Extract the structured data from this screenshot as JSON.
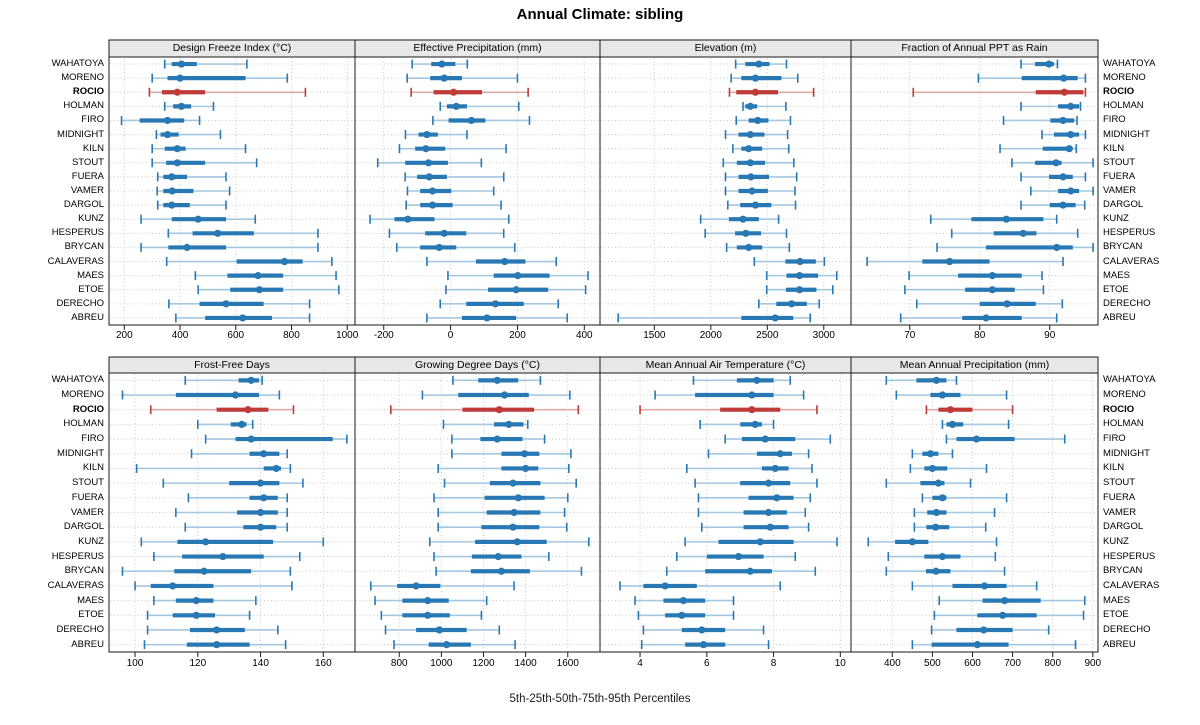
{
  "title": "Annual Climate: sibling",
  "caption": "5th-25th-50th-75th-95th Percentiles",
  "colors": {
    "blue": "#2878b4",
    "blue_light": "#a5c8e1",
    "red": "#c03a38",
    "red_light": "#ddaaa6",
    "strip_bg": "#e8e8e8",
    "panel_border": "#1a1a1a",
    "grid": "#c8c8c8"
  },
  "highlight_station": "ROCIO",
  "highlight_index": 2,
  "chart_data": {
    "type": "dotplot",
    "subtype": "percentile-interval-plot",
    "percentiles": [
      5,
      25,
      50,
      75,
      95
    ],
    "stations": [
      "WAHATOYA",
      "MORENO",
      "ROCIO",
      "HOLMAN",
      "FIRO",
      "MIDNIGHT",
      "KILN",
      "STOUT",
      "FUERA",
      "VAMER",
      "DARGOL",
      "KUNZ",
      "HESPERUS",
      "BRYCAN",
      "CALAVERAS",
      "MAES",
      "ETOE",
      "DERECHO",
      "ABREU"
    ],
    "panels": [
      {
        "title": "Design Freeze Index (°C)",
        "ticks": [
          200,
          400,
          600,
          800,
          1000
        ],
        "xlim": [
          145,
          1028
        ],
        "values": [
          [
            345,
            370,
            405,
            460,
            640
          ],
          [
            300,
            355,
            400,
            635,
            785
          ],
          [
            290,
            335,
            390,
            490,
            850
          ],
          [
            345,
            375,
            405,
            440,
            520
          ],
          [
            190,
            255,
            355,
            415,
            470
          ],
          [
            315,
            330,
            355,
            395,
            545
          ],
          [
            300,
            345,
            390,
            420,
            635
          ],
          [
            300,
            350,
            390,
            490,
            675
          ],
          [
            320,
            340,
            370,
            425,
            565
          ],
          [
            318,
            340,
            372,
            448,
            578
          ],
          [
            320,
            340,
            370,
            435,
            565
          ],
          [
            260,
            370,
            465,
            565,
            670
          ],
          [
            358,
            445,
            535,
            665,
            895
          ],
          [
            260,
            358,
            425,
            565,
            895
          ],
          [
            352,
            603,
            775,
            840,
            945
          ],
          [
            455,
            570,
            680,
            770,
            960
          ],
          [
            465,
            580,
            685,
            770,
            970
          ],
          [
            360,
            470,
            565,
            700,
            865
          ],
          [
            385,
            490,
            625,
            730,
            865
          ]
        ]
      },
      {
        "title": "Effective Precipitation (mm)",
        "ticks": [
          -200,
          0,
          200,
          400
        ],
        "xlim": [
          -286,
          447
        ],
        "values": [
          [
            -115,
            -58,
            -26,
            14,
            50
          ],
          [
            -130,
            -61,
            -19,
            34,
            200
          ],
          [
            -118,
            -51,
            9,
            94,
            232
          ],
          [
            -31,
            -11,
            17,
            49,
            204
          ],
          [
            -53,
            -6,
            62,
            104,
            236
          ],
          [
            -135,
            -96,
            -71,
            -38,
            49
          ],
          [
            -153,
            -106,
            -74,
            -16,
            166
          ],
          [
            -218,
            -136,
            -66,
            -8,
            92
          ],
          [
            -136,
            -100,
            -64,
            -11,
            159
          ],
          [
            -129,
            -91,
            -54,
            2,
            129
          ],
          [
            -133,
            -91,
            -54,
            6,
            151
          ],
          [
            -241,
            -168,
            -128,
            -48,
            174
          ],
          [
            -183,
            -76,
            -19,
            47,
            159
          ],
          [
            -161,
            -91,
            -34,
            17,
            192
          ],
          [
            -71,
            76,
            162,
            224,
            316
          ],
          [
            -8,
            129,
            201,
            296,
            411
          ],
          [
            -14,
            112,
            196,
            292,
            404
          ],
          [
            -31,
            47,
            134,
            219,
            322
          ],
          [
            -71,
            34,
            109,
            196,
            349
          ]
        ]
      },
      {
        "title": "Elevation (m)",
        "ticks": [
          1500,
          2000,
          2500,
          3000
        ],
        "xlim": [
          1019,
          3241
        ],
        "values": [
          [
            2220,
            2305,
            2425,
            2520,
            2670
          ],
          [
            2180,
            2270,
            2395,
            2625,
            2770
          ],
          [
            2165,
            2225,
            2395,
            2595,
            2910
          ],
          [
            2285,
            2305,
            2350,
            2410,
            2665
          ],
          [
            2225,
            2335,
            2415,
            2510,
            2705
          ],
          [
            2130,
            2245,
            2350,
            2475,
            2680
          ],
          [
            2195,
            2270,
            2335,
            2455,
            2690
          ],
          [
            2110,
            2230,
            2350,
            2480,
            2735
          ],
          [
            2130,
            2245,
            2355,
            2515,
            2760
          ],
          [
            2130,
            2245,
            2365,
            2505,
            2745
          ],
          [
            2150,
            2260,
            2395,
            2535,
            2750
          ],
          [
            1910,
            2160,
            2285,
            2425,
            2600
          ],
          [
            1950,
            2215,
            2310,
            2445,
            2670
          ],
          [
            2140,
            2230,
            2335,
            2455,
            2695
          ],
          [
            2385,
            2660,
            2790,
            2930,
            3005
          ],
          [
            2495,
            2670,
            2785,
            2950,
            3115
          ],
          [
            2495,
            2665,
            2785,
            2935,
            3080
          ],
          [
            2425,
            2580,
            2715,
            2850,
            2960
          ],
          [
            1180,
            2270,
            2570,
            2730,
            2880
          ]
        ]
      },
      {
        "title": "Fraction of Annual PPT as Rain",
        "ticks": [
          70,
          80,
          90
        ],
        "xlim": [
          61.6,
          96.9
        ],
        "values": [
          [
            85.9,
            87.9,
            89.9,
            90.6,
            91.1
          ],
          [
            79.8,
            86.0,
            92.0,
            94.0,
            95.1
          ],
          [
            70.5,
            88.0,
            92.1,
            94.8,
            95.1
          ],
          [
            85.9,
            91.2,
            93.0,
            94.2,
            94.4
          ],
          [
            83.4,
            90.1,
            91.9,
            93.5,
            93.9
          ],
          [
            88.9,
            90.6,
            93.0,
            94.2,
            95.1
          ],
          [
            82.9,
            89.0,
            92.8,
            93.2,
            93.8
          ],
          [
            84.6,
            87.9,
            90.9,
            91.7,
            96.2
          ],
          [
            85.9,
            89.9,
            91.9,
            93.3,
            95.1
          ],
          [
            87.3,
            91.2,
            93.0,
            94.2,
            96.2
          ],
          [
            85.9,
            90.0,
            91.9,
            93.7,
            95.0
          ],
          [
            73.0,
            78.8,
            83.8,
            89.1,
            91.0
          ],
          [
            76.0,
            82.0,
            86.2,
            88.1,
            94.0
          ],
          [
            73.9,
            80.9,
            91.0,
            93.3,
            96.2
          ],
          [
            63.9,
            71.8,
            75.7,
            81.4,
            91.9
          ],
          [
            69.9,
            76.9,
            81.8,
            86.0,
            88.9
          ],
          [
            69.3,
            77.9,
            81.8,
            85.0,
            89.1
          ],
          [
            71.0,
            80.0,
            83.9,
            88.0,
            91.8
          ],
          [
            68.7,
            77.5,
            80.9,
            86.0,
            91.0
          ]
        ]
      },
      {
        "title": "Frost-Free Days",
        "ticks": [
          100,
          120,
          140,
          160
        ],
        "xlim": [
          91.7,
          170.1
        ],
        "values": [
          [
            116,
            133,
            137,
            139.5,
            140.5
          ],
          [
            96,
            113,
            132,
            139.5,
            146
          ],
          [
            105,
            126,
            136,
            142.5,
            150.5
          ],
          [
            120,
            130.5,
            134,
            135.5,
            137.5
          ],
          [
            122.5,
            132,
            137,
            163,
            167.5
          ],
          [
            118,
            136.5,
            141,
            146,
            148.5
          ],
          [
            100.5,
            141,
            145,
            146.5,
            149.5
          ],
          [
            109,
            130,
            140,
            146,
            153.5
          ],
          [
            117,
            136.5,
            141,
            145.5,
            148.5
          ],
          [
            113,
            132.5,
            140,
            145.5,
            148.5
          ],
          [
            116,
            134.5,
            140,
            145,
            148.5
          ],
          [
            102,
            113.5,
            122.5,
            144,
            160
          ],
          [
            106,
            115,
            128,
            141,
            152.5
          ],
          [
            96,
            112.5,
            122,
            137,
            149.5
          ],
          [
            100,
            105,
            112,
            125,
            150
          ],
          [
            106,
            113,
            119.5,
            125,
            138.5
          ],
          [
            104,
            112,
            119.5,
            125.5,
            136.5
          ],
          [
            104,
            117.5,
            126,
            135,
            145.5
          ],
          [
            103,
            116.5,
            126,
            136.5,
            148
          ]
        ]
      },
      {
        "title": "Growing Degree Days (°C)",
        "ticks": [
          800,
          1000,
          1200,
          1400,
          1600
        ],
        "xlim": [
          590,
          1753
        ],
        "values": [
          [
            1055,
            1175,
            1265,
            1365,
            1470
          ],
          [
            910,
            1080,
            1300,
            1415,
            1610
          ],
          [
            760,
            1100,
            1275,
            1440,
            1650
          ],
          [
            1010,
            1250,
            1320,
            1390,
            1410
          ],
          [
            1050,
            1185,
            1265,
            1385,
            1490
          ],
          [
            1050,
            1285,
            1395,
            1465,
            1615
          ],
          [
            985,
            1285,
            1400,
            1460,
            1605
          ],
          [
            1015,
            1230,
            1340,
            1470,
            1640
          ],
          [
            965,
            1205,
            1365,
            1490,
            1600
          ],
          [
            985,
            1215,
            1345,
            1470,
            1585
          ],
          [
            985,
            1190,
            1340,
            1465,
            1595
          ],
          [
            945,
            1160,
            1360,
            1500,
            1700
          ],
          [
            965,
            1145,
            1270,
            1380,
            1510
          ],
          [
            975,
            1140,
            1285,
            1420,
            1665
          ],
          [
            665,
            790,
            880,
            995,
            1345
          ],
          [
            685,
            815,
            935,
            1035,
            1215
          ],
          [
            715,
            815,
            935,
            1040,
            1190
          ],
          [
            735,
            880,
            990,
            1120,
            1275
          ],
          [
            775,
            940,
            1025,
            1140,
            1350
          ]
        ]
      },
      {
        "title": "Mean Annual Air Temperature (°C)",
        "ticks": [
          4,
          6,
          8,
          10
        ],
        "xlim": [
          2.8,
          10.32
        ],
        "values": [
          [
            5.6,
            6.9,
            7.5,
            8.0,
            8.5
          ],
          [
            4.45,
            5.65,
            7.35,
            8.0,
            8.9
          ],
          [
            4.0,
            6.4,
            7.35,
            8.2,
            9.3
          ],
          [
            5.8,
            7.0,
            7.45,
            7.65,
            8.0
          ],
          [
            6.55,
            7.05,
            7.75,
            8.65,
            9.7
          ],
          [
            6.05,
            7.5,
            8.2,
            8.55,
            9.05
          ],
          [
            5.4,
            7.65,
            8.05,
            8.45,
            9.15
          ],
          [
            5.65,
            7.0,
            7.85,
            8.5,
            9.3
          ],
          [
            5.75,
            7.25,
            8.1,
            8.6,
            9.1
          ],
          [
            5.75,
            7.1,
            7.85,
            8.4,
            8.95
          ],
          [
            5.85,
            7.1,
            7.9,
            8.45,
            9.05
          ],
          [
            5.35,
            6.35,
            7.6,
            8.6,
            9.9
          ],
          [
            5.1,
            6.0,
            6.95,
            7.7,
            8.65
          ],
          [
            4.8,
            5.95,
            7.3,
            7.95,
            9.25
          ],
          [
            3.4,
            4.1,
            4.75,
            5.7,
            8.2
          ],
          [
            3.85,
            4.7,
            5.3,
            5.95,
            6.8
          ],
          [
            3.95,
            4.75,
            5.25,
            5.95,
            6.8
          ],
          [
            4.1,
            5.25,
            5.85,
            6.55,
            7.7
          ],
          [
            4.05,
            5.35,
            5.9,
            6.55,
            7.85
          ]
        ]
      },
      {
        "title": "Mean Annual Precipitation (mm)",
        "ticks": [
          400,
          500,
          600,
          700,
          800,
          900
        ],
        "xlim": [
          297,
          913
        ],
        "values": [
          [
            385,
            460,
            510,
            535,
            560
          ],
          [
            410,
            495,
            525,
            570,
            685
          ],
          [
            485,
            515,
            545,
            600,
            700
          ],
          [
            525,
            535,
            550,
            577,
            690
          ],
          [
            535,
            560,
            610,
            705,
            830
          ],
          [
            450,
            475,
            495,
            515,
            550
          ],
          [
            445,
            480,
            500,
            537,
            635
          ],
          [
            385,
            470,
            515,
            530,
            595
          ],
          [
            475,
            500,
            525,
            535,
            685
          ],
          [
            455,
            487,
            510,
            535,
            655
          ],
          [
            455,
            485,
            508,
            542,
            633
          ],
          [
            340,
            407,
            450,
            490,
            660
          ],
          [
            390,
            480,
            525,
            570,
            657
          ],
          [
            385,
            484,
            509,
            545,
            680
          ],
          [
            450,
            550,
            630,
            685,
            760
          ],
          [
            517,
            625,
            680,
            770,
            880
          ],
          [
            505,
            612,
            675,
            760,
            877
          ],
          [
            498,
            560,
            628,
            700,
            790
          ],
          [
            450,
            498,
            612,
            690,
            857
          ]
        ]
      }
    ]
  }
}
